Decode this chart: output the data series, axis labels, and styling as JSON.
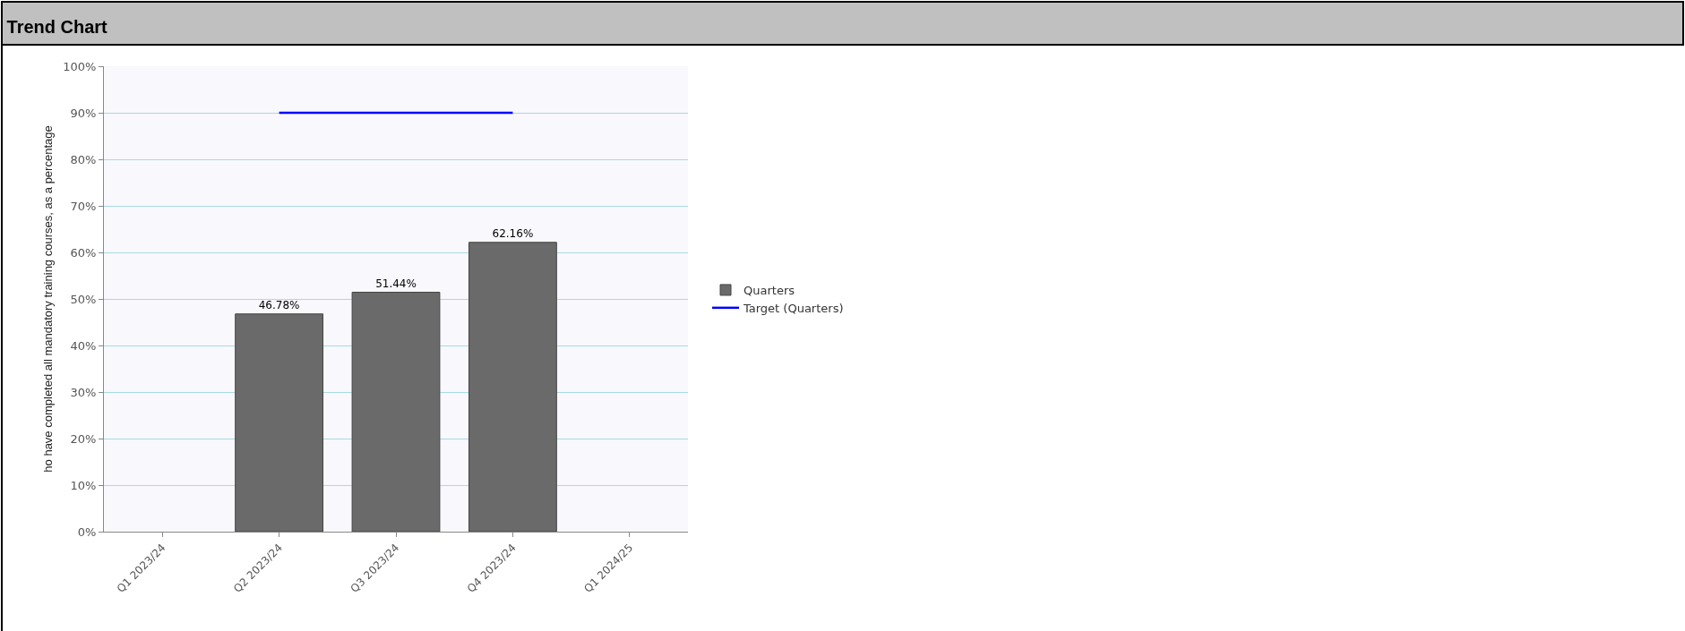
{
  "chart_data": {
    "type": "bar",
    "title": "Trend Chart",
    "ylabel": "ho have completed all mandatory training courses, as a percentage",
    "categories": [
      "Q1 2023/24",
      "Q2 2023/24",
      "Q3 2023/24",
      "Q4 2023/24",
      "Q1 2024/25"
    ],
    "series": [
      {
        "name": "Quarters",
        "color": "#6a6a6a",
        "values": [
          null,
          46.78,
          51.44,
          62.16,
          null
        ],
        "value_labels": [
          null,
          "46.78%",
          "51.44%",
          "62.16%",
          null
        ]
      },
      {
        "name": "Target (Quarters)",
        "type": "line",
        "color": "#0000ff",
        "values": [
          null,
          90,
          90,
          90,
          null
        ]
      }
    ],
    "ylim": [
      0,
      100
    ],
    "yticks": [
      {
        "value": 0,
        "label": "0%"
      },
      {
        "value": 10,
        "label": "10%"
      },
      {
        "value": 20,
        "label": "20%"
      },
      {
        "value": 30,
        "label": "30%"
      },
      {
        "value": 40,
        "label": "40%"
      },
      {
        "value": 50,
        "label": "50%"
      },
      {
        "value": 60,
        "label": "60%"
      },
      {
        "value": 70,
        "label": "70%"
      },
      {
        "value": 80,
        "label": "80%"
      },
      {
        "value": 90,
        "label": "90%"
      },
      {
        "value": 100,
        "label": "100%"
      }
    ],
    "grid": "y",
    "legend": "right",
    "marker": "none",
    "line_style": "solid"
  }
}
